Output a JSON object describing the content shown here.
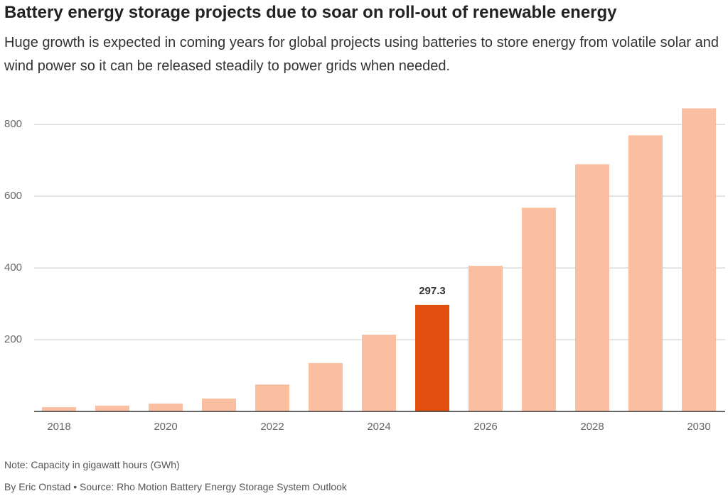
{
  "chart_data": {
    "type": "bar",
    "title": "Battery energy storage projects due to soar on roll-out of renewable energy",
    "subtitle": "Huge growth is expected in coming years for global projects using batteries to store energy from volatile solar and wind power so it can be released steadily to power grids when needed.",
    "categories": [
      "2018",
      null,
      "2020",
      null,
      "2022",
      null,
      "2024",
      null,
      "2026",
      null,
      "2028",
      null,
      "2030"
    ],
    "values": [
      12,
      16,
      22,
      36,
      75,
      135,
      214,
      297.3,
      406,
      568,
      689,
      770,
      845
    ],
    "color": "#f9bfa0",
    "colors": [
      "#f9bfa0",
      "#f9bfa0",
      "#f9bfa0",
      "#f9bfa0",
      "#f9bfa0",
      "#f9bfa0",
      "#f9bfa0",
      "#e04f0e",
      "#f9bfa0",
      "#f9bfa0",
      "#f9bfa0",
      "#f9bfa0",
      "#f9bfa0"
    ],
    "ylim": [
      0,
      850
    ],
    "yticks": [
      200,
      400,
      600,
      800
    ],
    "grid": true,
    "note": "Note: Capacity in gigawatt hours (GWh)",
    "source": "By Eric Onstad • Source: Rho Motion Battery Energy Storage System Outlook"
  }
}
